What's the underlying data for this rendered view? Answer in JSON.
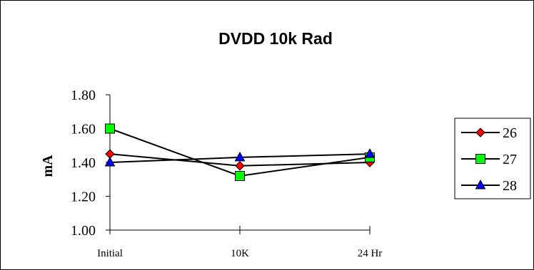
{
  "chart_data": {
    "type": "line",
    "title": "DVDD 10k Rad",
    "xlabel": "",
    "ylabel": "mA",
    "categories": [
      "Initial",
      "10K",
      "24 Hr"
    ],
    "y_ticks": [
      "1.00",
      "1.20",
      "1.40",
      "1.60",
      "1.80"
    ],
    "ylim": [
      1.0,
      1.8
    ],
    "grid": false,
    "legend_position": "right",
    "series": [
      {
        "name": "26",
        "values": [
          1.45,
          1.38,
          1.4
        ],
        "color": "#ff0000",
        "marker": "diamond"
      },
      {
        "name": "27",
        "values": [
          1.6,
          1.32,
          1.43
        ],
        "color": "#00ff00",
        "marker": "square"
      },
      {
        "name": "28",
        "values": [
          1.4,
          1.43,
          1.45
        ],
        "color": "#0000ff",
        "marker": "triangle"
      }
    ]
  }
}
